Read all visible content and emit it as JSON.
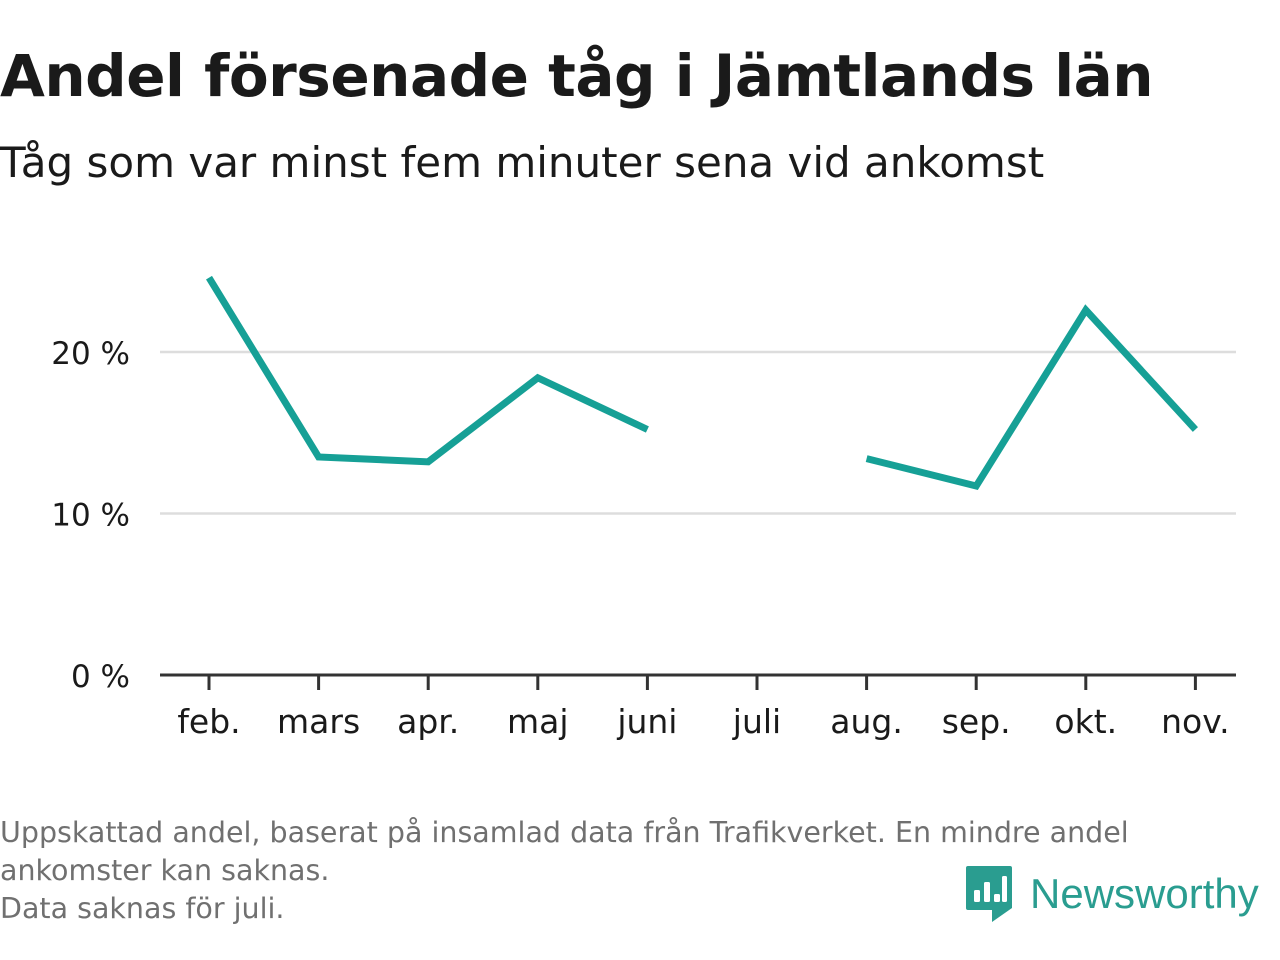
{
  "header": {
    "title": "Andel försenade tåg i Jämtlands län",
    "subtitle": "Tåg som var minst fem minuter sena vid ankomst"
  },
  "footnote": {
    "line1": "Uppskattad andel, baserat på insamlad data från Trafikverket. En mindre andel",
    "line2": "ankomster kan saknas.",
    "line3": "Data saknas för juli."
  },
  "brand": {
    "name": "Newsworthy",
    "logo_icon": "newsworthy-logo-icon",
    "color": "#2a9d90"
  },
  "colors": {
    "line": "#16a096",
    "grid": "#dddddd",
    "axis": "#333333",
    "text": "#1a1a1a",
    "muted": "#707070"
  },
  "chart_data": {
    "type": "line",
    "title": "Andel försenade tåg i Jämtlands län",
    "subtitle": "Tåg som var minst fem minuter sena vid ankomst",
    "categories": [
      "feb.",
      "mars",
      "apr.",
      "maj",
      "juni",
      "juli",
      "aug.",
      "sep.",
      "okt.",
      "nov."
    ],
    "series": [
      {
        "values": [
          24.6,
          13.5,
          13.2,
          18.4,
          15.2,
          null,
          13.4,
          11.7,
          22.6,
          15.2
        ]
      }
    ],
    "y_ticks": [
      0,
      10,
      20
    ],
    "y_tick_labels": [
      "0 %",
      "10 %",
      "20 %"
    ],
    "ylim": [
      0,
      26
    ],
    "grid": true,
    "legend": "none"
  }
}
